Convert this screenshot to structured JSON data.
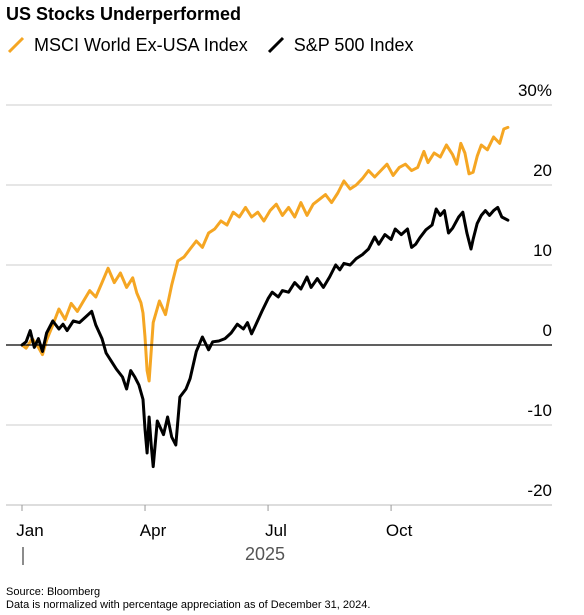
{
  "chart_data": {
    "type": "line",
    "title": "US Stocks Underperformed",
    "xlabel": "2025",
    "ylabel": "",
    "ylim": [
      -20,
      30
    ],
    "y_ticks": [
      30,
      20,
      10,
      0,
      -10,
      -20
    ],
    "y_tick_labels": [
      "30%",
      "20",
      "10",
      "0",
      "-10",
      "-20"
    ],
    "x_ticks": [
      {
        "label": "Jan",
        "x": 0
      },
      {
        "label": "Apr",
        "x": 3
      },
      {
        "label": "Jul",
        "x": 6
      },
      {
        "label": "Oct",
        "x": 9
      }
    ],
    "xlim": [
      0,
      11.9
    ],
    "legend_position": "top-left",
    "colors": {
      "msci": "#f5a623",
      "sp500": "#000000",
      "grid": "#cccccc",
      "zero": "#000000"
    },
    "series": [
      {
        "name": "MSCI World Ex-USA Index",
        "color": "#f5a623",
        "points": [
          [
            0,
            0
          ],
          [
            0.1,
            -0.4
          ],
          [
            0.25,
            0.8
          ],
          [
            0.4,
            -0.3
          ],
          [
            0.5,
            -1.2
          ],
          [
            0.6,
            0.6
          ],
          [
            0.75,
            2.5
          ],
          [
            0.9,
            4.5
          ],
          [
            1.05,
            3.2
          ],
          [
            1.2,
            5.2
          ],
          [
            1.35,
            4.2
          ],
          [
            1.5,
            5.5
          ],
          [
            1.65,
            6.8
          ],
          [
            1.8,
            6.0
          ],
          [
            1.95,
            7.8
          ],
          [
            2.1,
            9.6
          ],
          [
            2.25,
            7.8
          ],
          [
            2.4,
            9.0
          ],
          [
            2.55,
            7.2
          ],
          [
            2.7,
            8.4
          ],
          [
            2.8,
            6.5
          ],
          [
            2.9,
            5.3
          ],
          [
            2.95,
            4.0
          ],
          [
            3.0,
            1.0
          ],
          [
            3.05,
            -3.2
          ],
          [
            3.1,
            -4.5
          ],
          [
            3.2,
            2.8
          ],
          [
            3.35,
            5.5
          ],
          [
            3.5,
            3.8
          ],
          [
            3.65,
            7.5
          ],
          [
            3.8,
            10.5
          ],
          [
            3.95,
            11.0
          ],
          [
            4.1,
            12.0
          ],
          [
            4.25,
            13.0
          ],
          [
            4.4,
            12.2
          ],
          [
            4.55,
            14.0
          ],
          [
            4.7,
            14.5
          ],
          [
            4.85,
            15.5
          ],
          [
            5.0,
            15.0
          ],
          [
            5.15,
            16.6
          ],
          [
            5.3,
            16.0
          ],
          [
            5.45,
            17.2
          ],
          [
            5.6,
            16.0
          ],
          [
            5.75,
            16.6
          ],
          [
            5.9,
            15.5
          ],
          [
            6.05,
            16.8
          ],
          [
            6.2,
            17.6
          ],
          [
            6.35,
            16.2
          ],
          [
            6.5,
            17.2
          ],
          [
            6.65,
            16.0
          ],
          [
            6.8,
            17.8
          ],
          [
            6.95,
            16.2
          ],
          [
            7.1,
            17.6
          ],
          [
            7.25,
            18.2
          ],
          [
            7.4,
            18.8
          ],
          [
            7.55,
            17.8
          ],
          [
            7.7,
            19.0
          ],
          [
            7.85,
            20.5
          ],
          [
            8.0,
            19.5
          ],
          [
            8.15,
            20.0
          ],
          [
            8.3,
            20.8
          ],
          [
            8.45,
            21.8
          ],
          [
            8.6,
            21.0
          ],
          [
            8.75,
            21.8
          ],
          [
            8.9,
            22.6
          ],
          [
            9.05,
            21.2
          ],
          [
            9.2,
            22.2
          ],
          [
            9.35,
            22.6
          ],
          [
            9.5,
            21.8
          ],
          [
            9.65,
            22.2
          ],
          [
            9.8,
            24.2
          ],
          [
            9.9,
            22.8
          ],
          [
            10.05,
            24.0
          ],
          [
            10.2,
            23.5
          ],
          [
            10.35,
            25.0
          ],
          [
            10.5,
            23.8
          ],
          [
            10.6,
            22.6
          ],
          [
            10.7,
            25.2
          ],
          [
            10.8,
            24.0
          ],
          [
            10.9,
            21.4
          ],
          [
            11.0,
            21.6
          ],
          [
            11.1,
            23.6
          ],
          [
            11.2,
            25.0
          ],
          [
            11.35,
            24.4
          ],
          [
            11.5,
            26.0
          ],
          [
            11.65,
            25.2
          ],
          [
            11.75,
            27.0
          ],
          [
            11.85,
            27.2
          ]
        ]
      },
      {
        "name": "S&P 500 Index",
        "color": "#000000",
        "points": [
          [
            0,
            0
          ],
          [
            0.1,
            0.4
          ],
          [
            0.2,
            1.8
          ],
          [
            0.3,
            -0.3
          ],
          [
            0.4,
            0.8
          ],
          [
            0.5,
            -0.8
          ],
          [
            0.6,
            1.5
          ],
          [
            0.75,
            3.0
          ],
          [
            0.9,
            2.0
          ],
          [
            1.0,
            2.6
          ],
          [
            1.1,
            1.8
          ],
          [
            1.25,
            3.0
          ],
          [
            1.4,
            2.8
          ],
          [
            1.55,
            3.5
          ],
          [
            1.7,
            4.2
          ],
          [
            1.8,
            2.5
          ],
          [
            1.95,
            0.8
          ],
          [
            2.05,
            -1.0
          ],
          [
            2.2,
            -2.2
          ],
          [
            2.3,
            -3.0
          ],
          [
            2.45,
            -4.0
          ],
          [
            2.55,
            -5.5
          ],
          [
            2.65,
            -3.2
          ],
          [
            2.75,
            -4.0
          ],
          [
            2.85,
            -5.0
          ],
          [
            2.95,
            -6.8
          ],
          [
            3.0,
            -10.5
          ],
          [
            3.05,
            -13.5
          ],
          [
            3.1,
            -9.0
          ],
          [
            3.15,
            -12.5
          ],
          [
            3.2,
            -15.2
          ],
          [
            3.3,
            -9.5
          ],
          [
            3.45,
            -11.2
          ],
          [
            3.55,
            -9.0
          ],
          [
            3.65,
            -11.5
          ],
          [
            3.75,
            -12.5
          ],
          [
            3.85,
            -6.5
          ],
          [
            4.0,
            -5.5
          ],
          [
            4.1,
            -4.2
          ],
          [
            4.25,
            -0.8
          ],
          [
            4.4,
            1.0
          ],
          [
            4.55,
            -0.6
          ],
          [
            4.65,
            0.4
          ],
          [
            4.8,
            0.5
          ],
          [
            4.95,
            0.8
          ],
          [
            5.1,
            1.5
          ],
          [
            5.25,
            2.6
          ],
          [
            5.4,
            2.0
          ],
          [
            5.5,
            2.8
          ],
          [
            5.6,
            1.4
          ],
          [
            5.7,
            2.5
          ],
          [
            5.85,
            4.2
          ],
          [
            6.0,
            5.8
          ],
          [
            6.1,
            6.6
          ],
          [
            6.25,
            6.0
          ],
          [
            6.35,
            6.8
          ],
          [
            6.5,
            6.6
          ],
          [
            6.65,
            7.8
          ],
          [
            6.8,
            7.0
          ],
          [
            6.95,
            8.5
          ],
          [
            7.05,
            7.2
          ],
          [
            7.2,
            8.3
          ],
          [
            7.35,
            7.2
          ],
          [
            7.5,
            8.5
          ],
          [
            7.65,
            10.0
          ],
          [
            7.75,
            9.4
          ],
          [
            7.85,
            10.2
          ],
          [
            8.0,
            10.0
          ],
          [
            8.15,
            10.8
          ],
          [
            8.3,
            11.3
          ],
          [
            8.45,
            12.0
          ],
          [
            8.6,
            13.5
          ],
          [
            8.7,
            12.6
          ],
          [
            8.85,
            13.8
          ],
          [
            9.0,
            13.2
          ],
          [
            9.1,
            14.5
          ],
          [
            9.25,
            13.8
          ],
          [
            9.4,
            14.5
          ],
          [
            9.5,
            12.2
          ],
          [
            9.6,
            12.6
          ],
          [
            9.7,
            13.4
          ],
          [
            9.85,
            14.4
          ],
          [
            10.0,
            15.0
          ],
          [
            10.1,
            17.0
          ],
          [
            10.2,
            16.2
          ],
          [
            10.3,
            16.8
          ],
          [
            10.4,
            14.0
          ],
          [
            10.5,
            14.6
          ],
          [
            10.65,
            16.0
          ],
          [
            10.75,
            16.6
          ],
          [
            10.85,
            14.0
          ],
          [
            10.95,
            12.0
          ],
          [
            11.0,
            13.2
          ],
          [
            11.1,
            15.2
          ],
          [
            11.2,
            16.2
          ],
          [
            11.3,
            16.8
          ],
          [
            11.4,
            16.2
          ],
          [
            11.5,
            16.8
          ],
          [
            11.6,
            17.2
          ],
          [
            11.7,
            16.0
          ],
          [
            11.85,
            15.6
          ]
        ]
      }
    ]
  },
  "footer": {
    "source": "Source: Bloomberg",
    "note": "Data is normalized with percentage appreciation as of December 31, 2024."
  }
}
